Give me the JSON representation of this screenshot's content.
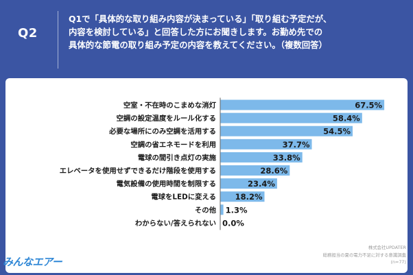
{
  "header": {
    "question_id": "Q2",
    "question_text": "Q1で「具体的な取り組み内容が決まっている」「取り組む予定だが、\n内容を検討している」と回答した方にお聞きします。お勤め先での\n具体的な節電の取り組み予定の内容を教えてください。（複数回答）"
  },
  "chart_data": {
    "type": "bar",
    "orientation": "horizontal",
    "categories": [
      "空室・不在時のこまめな消灯",
      "空調の設定温度をルール化する",
      "必要な場所にのみ空調を活用する",
      "空調の省エネモードを利用",
      "電球の間引き点灯の実施",
      "エレベータを使用せずできるだけ階段を使用する",
      "電気設備の使用時間を制限する",
      "電球をLEDに変える",
      "その他",
      "わからない/答えられない"
    ],
    "values": [
      67.5,
      58.4,
      54.5,
      37.7,
      33.8,
      28.6,
      23.4,
      18.2,
      1.3,
      0.0
    ],
    "value_labels": [
      "67.5%",
      "58.4%",
      "54.5%",
      "37.7%",
      "33.8%",
      "28.6%",
      "23.4%",
      "18.2%",
      "1.3%",
      "0.0%"
    ],
    "unit": "%",
    "xlim": [
      0,
      72
    ],
    "bar_color": "#7db9ea",
    "title": "",
    "xlabel": "",
    "ylabel": ""
  },
  "footer": {
    "logo_text": "みんなエアー",
    "source_company": "株式会社UPDATER",
    "source_survey": "総務担当の夏の電力不足に対する意識調査",
    "source_n": "(n=77)"
  },
  "colors": {
    "header_bg": "#3b55a3",
    "bar": "#7db9ea",
    "axis": "#666666"
  }
}
